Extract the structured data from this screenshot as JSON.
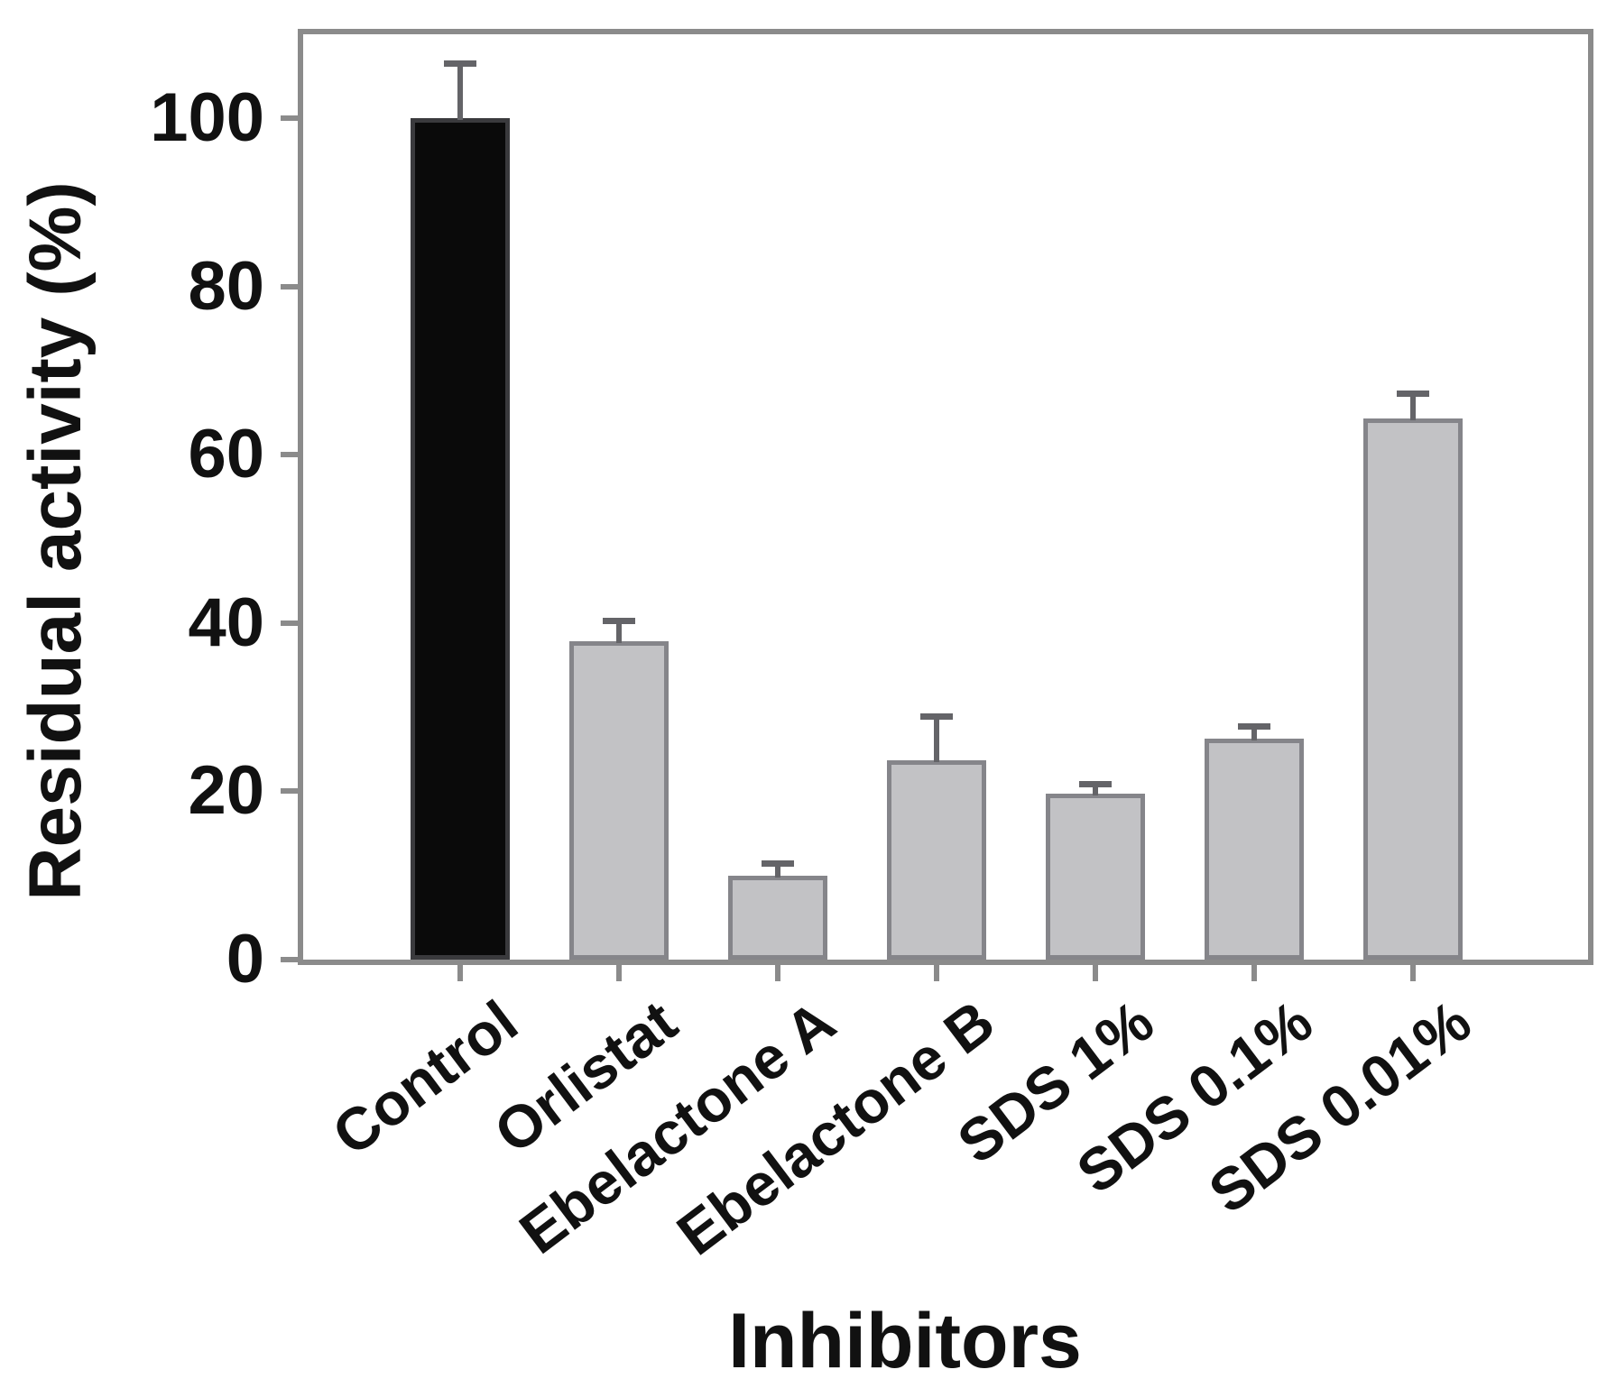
{
  "figure": {
    "y_axis_title": "Residual activity (%)",
    "x_axis_title": "Inhibitors"
  },
  "chart_data": {
    "type": "bar",
    "title": "",
    "xlabel": "Inhibitors",
    "ylabel": "Residual activity (%)",
    "categories": [
      "Control",
      "Orlistat",
      "Ebelactone A",
      "Ebelactone B",
      "SDS 1%",
      "SDS 0.1%",
      "SDS 0.01%"
    ],
    "values": [
      100,
      37.8,
      10,
      23.7,
      19.7,
      26.3,
      64.3
    ],
    "errors": [
      6.5,
      2.5,
      1.5,
      5.3,
      1.2,
      1.5,
      3.0
    ],
    "yticks": [
      0,
      20,
      40,
      60,
      80,
      100
    ],
    "ylim": [
      0,
      110
    ],
    "grid": false,
    "legend": null,
    "error_bars": "upper-only",
    "colors": {
      "control_bar_fill": "#0a0a0a",
      "bar_fill": "#c2c2c5",
      "bar_stroke": "#85858a",
      "error_bar": "#646468",
      "frame": "#8b8b8b",
      "text": "#111111"
    },
    "bar_colors": [
      "#0a0a0a",
      "#c2c2c5",
      "#c2c2c5",
      "#c2c2c5",
      "#c2c2c5",
      "#c2c2c5",
      "#c2c2c5"
    ]
  }
}
